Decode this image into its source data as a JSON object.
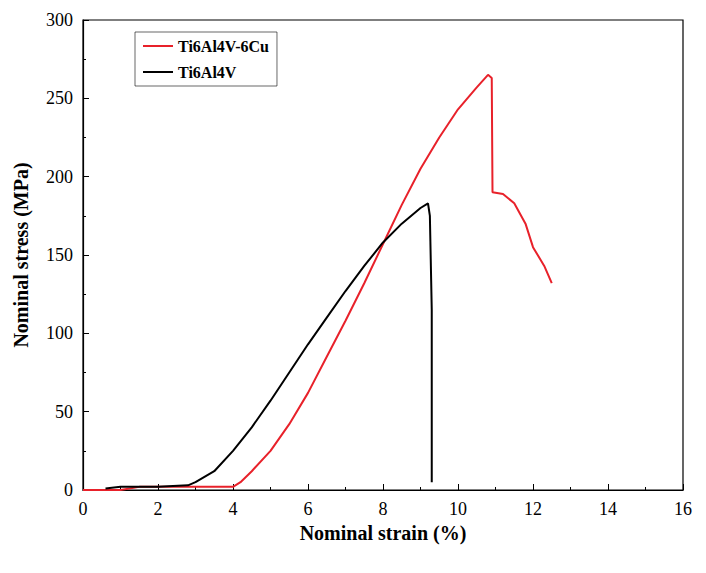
{
  "chart_data": {
    "type": "line",
    "x_label": "Nominal strain (%)",
    "y_label": "Nominal stress (MPa)",
    "xlim": [
      0,
      16
    ],
    "xticks": [
      0,
      2,
      4,
      6,
      8,
      10,
      12,
      14,
      16
    ],
    "ylim": [
      0,
      300
    ],
    "yticks": [
      0,
      50,
      100,
      150,
      200,
      250,
      300
    ],
    "grid": false,
    "legend": "upper left",
    "marker": "none",
    "line_style": "solid",
    "series": [
      {
        "name": "Ti6Al4V-6Cu",
        "color": "#e8212a",
        "x": [
          0,
          1,
          1.5,
          2,
          3,
          4,
          4.2,
          4.5,
          5,
          5.5,
          6,
          6.5,
          7,
          7.5,
          8,
          8.5,
          9,
          9.5,
          10,
          10.5,
          10.8,
          10.9,
          10.92,
          11.2,
          11.5,
          11.8,
          12,
          12.3,
          12.5
        ],
        "values": [
          0,
          0,
          2,
          2,
          2,
          2,
          5,
          12,
          25,
          42,
          62,
          85,
          108,
          132,
          157,
          182,
          205,
          225,
          243,
          257,
          265,
          263,
          190,
          189,
          183,
          170,
          155,
          143,
          132
        ]
      },
      {
        "name": "Ti6Al4V",
        "color": "#000000",
        "x": [
          0.6,
          1,
          2,
          2.8,
          3,
          3.5,
          4,
          4.5,
          5,
          5.5,
          6,
          6.5,
          7,
          7.5,
          8,
          8.5,
          9,
          9.2,
          9.25,
          9.3,
          9.3
        ],
        "values": [
          1,
          2,
          2,
          3,
          5,
          12,
          25,
          40,
          57,
          75,
          93,
          110,
          127,
          143,
          158,
          170,
          180,
          183,
          175,
          115,
          5
        ]
      }
    ]
  }
}
